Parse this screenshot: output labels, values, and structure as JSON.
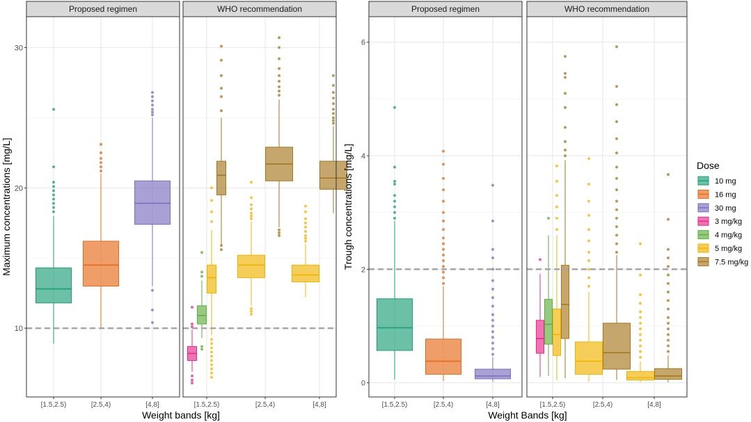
{
  "legend": {
    "title": "Dose",
    "items": [
      {
        "label": "10 mg",
        "color": "#1b9e77"
      },
      {
        "label": "16 mg",
        "color": "#e66a1a"
      },
      {
        "label": "30 mg",
        "color": "#7b6fbf"
      },
      {
        "label": "3 mg/kg",
        "color": "#e7298a"
      },
      {
        "label": "4 mg/kg",
        "color": "#5fae3e"
      },
      {
        "label": "5 mg/kg",
        "color": "#f0b400"
      },
      {
        "label": "7.5 mg/kg",
        "color": "#a6761d"
      }
    ]
  },
  "chart_data": [
    {
      "type": "boxplot",
      "ylabel": "Maximum concentrations [mg/L]",
      "xlabel": "Weight bands [kg]",
      "ylim": [
        5.1,
        32.2
      ],
      "yticks": [
        10,
        20,
        30
      ],
      "reference_line": 10,
      "categories": [
        "[1.5,2.5)",
        "[2.5,4)",
        "[4,8]"
      ],
      "facets": [
        {
          "label": "Proposed regimen",
          "boxes": [
            {
              "category": "[1.5,2.5)",
              "dose": "10 mg",
              "q1": 11.8,
              "median": 12.8,
              "q3": 14.3,
              "whisker_low": 8.9,
              "whisker_high": 18.0,
              "outliers": [
                18.3,
                18.6,
                18.9,
                19.2,
                19.5,
                19.8,
                20.1,
                20.4,
                21.5,
                25.6
              ]
            },
            {
              "category": "[2.5,4)",
              "dose": "16 mg",
              "q1": 13.0,
              "median": 14.5,
              "q3": 16.2,
              "whisker_low": 10.0,
              "whisker_high": 21.0,
              "outliers": [
                21.2,
                21.5,
                21.8,
                22.1,
                22.5,
                23.1
              ]
            },
            {
              "category": "[4,8]",
              "dose": "30 mg",
              "q1": 17.4,
              "median": 18.9,
              "q3": 20.5,
              "whisker_low": 13.0,
              "whisker_high": 25.0,
              "outliers": [
                12.7,
                11.3,
                10.4,
                25.2,
                25.4,
                25.6,
                25.9,
                26.2,
                26.5,
                26.8
              ]
            }
          ]
        },
        {
          "label": "WHO recommendation",
          "boxes": [
            {
              "category": "[1.5,2.5)",
              "dose": "3 mg/kg",
              "q1": 7.7,
              "median": 8.2,
              "q3": 8.7,
              "whisker_low": 6.9,
              "whisker_high": 9.9,
              "outliers": [
                6.6,
                6.3,
                6.1,
                10.1,
                10.3,
                11.5
              ]
            },
            {
              "category": "[1.5,2.5)",
              "dose": "4 mg/kg",
              "q1": 10.3,
              "median": 10.9,
              "q3": 11.6,
              "whisker_low": 9.3,
              "whisker_high": 13.4,
              "outliers": [
                8.7,
                8.5,
                13.7,
                14.0,
                15.4
              ]
            },
            {
              "category": "[1.5,2.5)",
              "dose": "5 mg/kg",
              "q1": 12.5,
              "median": 13.6,
              "q3": 14.5,
              "whisker_low": 9.5,
              "whisker_high": 17.0,
              "outliers": [
                6.5,
                6.8,
                7.1,
                7.4,
                7.7,
                8.0,
                8.3,
                8.6,
                8.9,
                9.2,
                17.6,
                18.3,
                19.1,
                20.0
              ]
            },
            {
              "category": "[1.5,2.5)",
              "dose": "7.5 mg/kg",
              "q1": 19.5,
              "median": 20.9,
              "q3": 21.9,
              "whisker_low": 16.0,
              "whisker_high": 25.0,
              "outliers": [
                15.6,
                15.9,
                25.5,
                26.5,
                27.1,
                28.0,
                29.1,
                30.1
              ]
            },
            {
              "category": "[2.5,4)",
              "dose": "5 mg/kg",
              "q1": 13.6,
              "median": 14.5,
              "q3": 15.2,
              "whisker_low": 11.6,
              "whisker_high": 17.6,
              "outliers": [
                11.0,
                11.2,
                11.4,
                17.8,
                18.0,
                18.2,
                18.5,
                18.8,
                19.3,
                20.4
              ]
            },
            {
              "category": "[2.5,4)",
              "dose": "7.5 mg/kg",
              "q1": 20.5,
              "median": 21.7,
              "q3": 22.9,
              "whisker_low": 17.2,
              "whisker_high": 26.3,
              "outliers": [
                16.6,
                16.8,
                17.0,
                26.6,
                26.9,
                27.2,
                27.6,
                28.0,
                28.5,
                29.2,
                30.0,
                30.7
              ]
            },
            {
              "category": "[4,8]",
              "dose": "5 mg/kg",
              "q1": 13.3,
              "median": 13.8,
              "q3": 14.5,
              "whisker_low": 12.2,
              "whisker_high": 16.0,
              "outliers": [
                16.2,
                16.4,
                16.6,
                16.9,
                17.2,
                17.5,
                17.8,
                18.3,
                18.7
              ]
            },
            {
              "category": "[4,8]",
              "dose": "7.5 mg/kg",
              "q1": 19.9,
              "median": 20.7,
              "q3": 21.9,
              "whisker_low": 18.2,
              "whisker_high": 24.4,
              "outliers": [
                24.6,
                24.8,
                25.0,
                25.3,
                25.6,
                26.0,
                26.4,
                26.8,
                27.3,
                28.0
              ]
            }
          ]
        }
      ]
    },
    {
      "type": "boxplot",
      "ylabel": "Trough concentrations [mg/L]",
      "xlabel": "Weight Bands [kg]",
      "ylim": [
        -0.25,
        6.45
      ],
      "yticks": [
        0,
        2,
        4,
        6
      ],
      "reference_line": 2,
      "categories": [
        "[1.5,2.5)",
        "[2.5,4)",
        "[4,8]"
      ],
      "facets": [
        {
          "label": "Proposed regimen",
          "boxes": [
            {
              "category": "[1.5,2.5)",
              "dose": "10 mg",
              "q1": 0.57,
              "median": 0.97,
              "q3": 1.48,
              "whisker_low": 0.06,
              "whisker_high": 2.85,
              "outliers": [
                2.9,
                3.0,
                3.1,
                3.2,
                3.3,
                3.5,
                3.55,
                3.8,
                4.85
              ]
            },
            {
              "category": "[2.5,4)",
              "dose": "16 mg",
              "q1": 0.15,
              "median": 0.38,
              "q3": 0.77,
              "whisker_low": 0.03,
              "whisker_high": 1.7,
              "outliers": [
                1.75,
                1.85,
                1.95,
                2.05,
                2.15,
                2.25,
                2.35,
                2.45,
                2.55,
                2.7,
                2.85,
                3.0,
                3.2,
                3.4,
                3.6,
                3.85,
                4.08
              ]
            },
            {
              "category": "[4,8]",
              "dose": "30 mg",
              "q1": 0.07,
              "median": 0.12,
              "q3": 0.24,
              "whisker_low": 0.02,
              "whisker_high": 0.45,
              "outliers": [
                0.5,
                0.6,
                0.7,
                0.8,
                0.9,
                1.0,
                1.1,
                1.2,
                1.35,
                1.5,
                1.65,
                1.8,
                2.0,
                2.2,
                2.35,
                2.85,
                3.48
              ]
            }
          ]
        },
        {
          "label": "WHO recommendation",
          "boxes": [
            {
              "category": "[1.5,2.5)",
              "dose": "3 mg/kg",
              "q1": 0.52,
              "median": 0.78,
              "q3": 1.1,
              "whisker_low": 0.1,
              "whisker_high": 1.92,
              "outliers": [
                2.17
              ]
            },
            {
              "category": "[1.5,2.5)",
              "dose": "4 mg/kg",
              "q1": 0.68,
              "median": 1.03,
              "q3": 1.47,
              "whisker_low": 0.12,
              "whisker_high": 2.6,
              "outliers": [
                2.9
              ]
            },
            {
              "category": "[1.5,2.5)",
              "dose": "5 mg/kg",
              "q1": 0.48,
              "median": 0.85,
              "q3": 1.3,
              "whisker_low": 0.05,
              "whisker_high": 2.6,
              "outliers": [
                2.7,
                2.9,
                3.1,
                3.3,
                3.55,
                3.82
              ]
            },
            {
              "category": "[1.5,2.5)",
              "dose": "7.5 mg/kg",
              "q1": 0.78,
              "median": 1.38,
              "q3": 2.07,
              "whisker_low": 0.08,
              "whisker_high": 3.92,
              "outliers": [
                4.0,
                4.1,
                4.25,
                4.5,
                4.85,
                5.1,
                5.38,
                5.45,
                5.75
              ]
            },
            {
              "category": "[2.5,4)",
              "dose": "5 mg/kg",
              "q1": 0.15,
              "median": 0.38,
              "q3": 0.72,
              "whisker_low": 0.02,
              "whisker_high": 1.6,
              "outliers": [
                1.7,
                1.85,
                2.0,
                2.15,
                2.3,
                2.5,
                2.7,
                2.95,
                3.2,
                3.5,
                3.95
              ]
            },
            {
              "category": "[2.5,4)",
              "dose": "7.5 mg/kg",
              "q1": 0.24,
              "median": 0.53,
              "q3": 1.05,
              "whisker_low": 0.05,
              "whisker_high": 2.25,
              "outliers": [
                2.3,
                2.45,
                2.6,
                2.75,
                2.9,
                3.05,
                3.2,
                3.4,
                3.6,
                3.8,
                4.05,
                4.3,
                4.6,
                4.9,
                5.22,
                5.92
              ]
            },
            {
              "category": "[4,8]",
              "dose": "5 mg/kg",
              "q1": 0.05,
              "median": 0.09,
              "q3": 0.2,
              "whisker_low": 0.01,
              "whisker_high": 0.38,
              "outliers": [
                0.45,
                0.55,
                0.65,
                0.75,
                0.85,
                0.95,
                1.05,
                1.15,
                1.25,
                1.4,
                1.55,
                1.9,
                2.45
              ]
            },
            {
              "category": "[4,8]",
              "dose": "7.5 mg/kg",
              "q1": 0.06,
              "median": 0.12,
              "q3": 0.25,
              "whisker_low": 0.01,
              "whisker_high": 0.48,
              "outliers": [
                0.55,
                0.65,
                0.75,
                0.85,
                0.95,
                1.05,
                1.15,
                1.3,
                1.45,
                1.6,
                1.75,
                1.9,
                2.05,
                2.2,
                2.35,
                2.88,
                3.67
              ]
            }
          ]
        }
      ]
    }
  ]
}
